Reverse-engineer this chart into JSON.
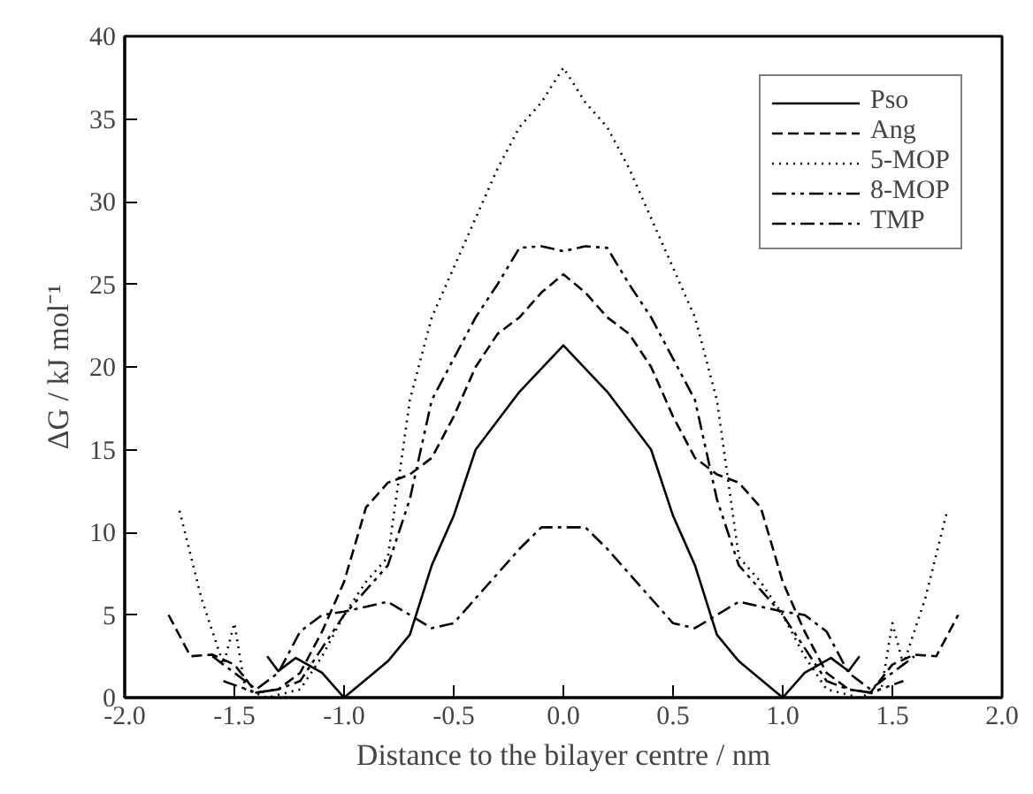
{
  "chart_data": {
    "type": "line",
    "xlabel": "Distance to the bilayer centre / nm",
    "ylabel": "ΔG / kJ mol⁻¹",
    "xlim": [
      -2.0,
      2.0
    ],
    "ylim": [
      0,
      40
    ],
    "xticks": [
      {
        "value": -2,
        "label": "-2.0"
      },
      {
        "value": -1.5,
        "label": "-1.5"
      },
      {
        "value": -1,
        "label": "-1.0"
      },
      {
        "value": -0.5,
        "label": "-0.5"
      },
      {
        "value": 0,
        "label": "0.0"
      },
      {
        "value": 0.5,
        "label": "0.5"
      },
      {
        "value": 1,
        "label": "1.0"
      },
      {
        "value": 1.5,
        "label": "1.5"
      },
      {
        "value": 2,
        "label": "2.0"
      }
    ],
    "yticks": [
      0,
      5,
      10,
      15,
      20,
      25,
      30,
      35,
      40
    ],
    "grid": false,
    "legend": "top right",
    "marker": "none",
    "series": [
      {
        "name": "Pso",
        "color": "#000000",
        "line_style": "solid",
        "x": [
          -1.35,
          -1.3,
          -1.22,
          -1.1,
          -1.0,
          -0.8,
          -0.7,
          -0.6,
          -0.5,
          -0.4,
          -0.2,
          0,
          0.2,
          0.4,
          0.5,
          0.6,
          0.7,
          0.8,
          1.0,
          1.1,
          1.22,
          1.3,
          1.35
        ],
        "values": [
          2.5,
          1.6,
          2.4,
          1.5,
          0,
          2.2,
          3.8,
          8,
          11,
          15,
          18.5,
          21.3,
          18.5,
          15,
          11,
          8,
          3.8,
          2.2,
          0,
          1.5,
          2.4,
          1.6,
          2.5
        ]
      },
      {
        "name": "Ang",
        "color": "#000000",
        "line_style": "dashed",
        "x": [
          -1.8,
          -1.7,
          -1.6,
          -1.5,
          -1.4,
          -1.3,
          -1.2,
          -1.1,
          -1.0,
          -0.9,
          -0.8,
          -0.7,
          -0.6,
          -0.5,
          -0.4,
          -0.3,
          -0.2,
          -0.1,
          0,
          0.1,
          0.2,
          0.3,
          0.4,
          0.5,
          0.6,
          0.7,
          0.8,
          0.9,
          1.0,
          1.1,
          1.2,
          1.3,
          1.4,
          1.5,
          1.6,
          1.7,
          1.8
        ],
        "values": [
          5,
          2.5,
          2.6,
          2,
          0.3,
          0.5,
          1.5,
          4,
          7,
          11.5,
          13,
          13.5,
          14.5,
          17,
          20,
          22,
          23,
          24.5,
          25.6,
          24.5,
          23,
          22,
          20,
          17,
          14.5,
          13.5,
          13,
          11.5,
          7,
          4,
          1.5,
          0.5,
          0.3,
          2,
          2.6,
          2.5,
          5
        ]
      },
      {
        "name": "5-MOP",
        "color": "#000000",
        "line_style": "dotted",
        "x": [
          -1.75,
          -1.65,
          -1.55,
          -1.5,
          -1.45,
          -1.35,
          -1.2,
          -1.1,
          -1.0,
          -0.9,
          -0.8,
          -0.7,
          -0.6,
          -0.5,
          -0.4,
          -0.3,
          -0.2,
          -0.1,
          0,
          0.1,
          0.2,
          0.3,
          0.4,
          0.5,
          0.6,
          0.7,
          0.8,
          0.9,
          1.0,
          1.1,
          1.2,
          1.35,
          1.45,
          1.5,
          1.55,
          1.65,
          1.75
        ],
        "values": [
          11.3,
          6,
          2,
          4.5,
          0.5,
          0,
          0.5,
          2.5,
          5,
          7,
          8.5,
          18,
          23,
          26,
          29,
          32,
          34.5,
          36,
          38.1,
          36,
          34.5,
          32,
          29,
          26,
          23,
          18,
          8.5,
          7,
          5,
          2.5,
          0.5,
          0,
          0.5,
          4.5,
          2,
          6,
          11.3
        ]
      },
      {
        "name": "8-MOP",
        "color": "#000000",
        "line_style": "dashdotdot",
        "x": [
          -1.55,
          -1.4,
          -1.3,
          -1.2,
          -1.1,
          -1.0,
          -0.9,
          -0.8,
          -0.7,
          -0.6,
          -0.5,
          -0.4,
          -0.3,
          -0.2,
          -0.1,
          0,
          0.1,
          0.2,
          0.3,
          0.4,
          0.5,
          0.6,
          0.7,
          0.8,
          0.9,
          1.0,
          1.1,
          1.2,
          1.3,
          1.4,
          1.55
        ],
        "values": [
          1,
          0.3,
          0.5,
          1,
          3,
          5,
          6.5,
          8,
          12,
          18,
          20.5,
          23,
          25,
          27.2,
          27.3,
          27,
          27.3,
          27.2,
          25,
          23,
          20.5,
          18,
          12,
          8,
          6.5,
          5,
          3,
          1,
          0.5,
          0.3,
          1
        ]
      },
      {
        "name": "TMP",
        "color": "#000000",
        "line_style": "dashdot",
        "x": [
          -1.6,
          -1.5,
          -1.4,
          -1.3,
          -1.2,
          -1.1,
          -1.0,
          -0.9,
          -0.8,
          -0.7,
          -0.6,
          -0.5,
          -0.4,
          -0.3,
          -0.2,
          -0.1,
          0,
          0.1,
          0.2,
          0.3,
          0.4,
          0.5,
          0.6,
          0.7,
          0.8,
          0.9,
          1.0,
          1.1,
          1.2,
          1.3,
          1.4,
          1.5,
          1.6
        ],
        "values": [
          2.5,
          1.5,
          0.5,
          1.5,
          4,
          5,
          5.2,
          5.5,
          5.8,
          5,
          4.2,
          4.5,
          6,
          7.5,
          9,
          10.3,
          10.3,
          10.3,
          9,
          7.5,
          6,
          4.5,
          4.2,
          5,
          5.8,
          5.5,
          5.2,
          5,
          4,
          1.5,
          0.5,
          1.5,
          2.5
        ]
      }
    ]
  }
}
